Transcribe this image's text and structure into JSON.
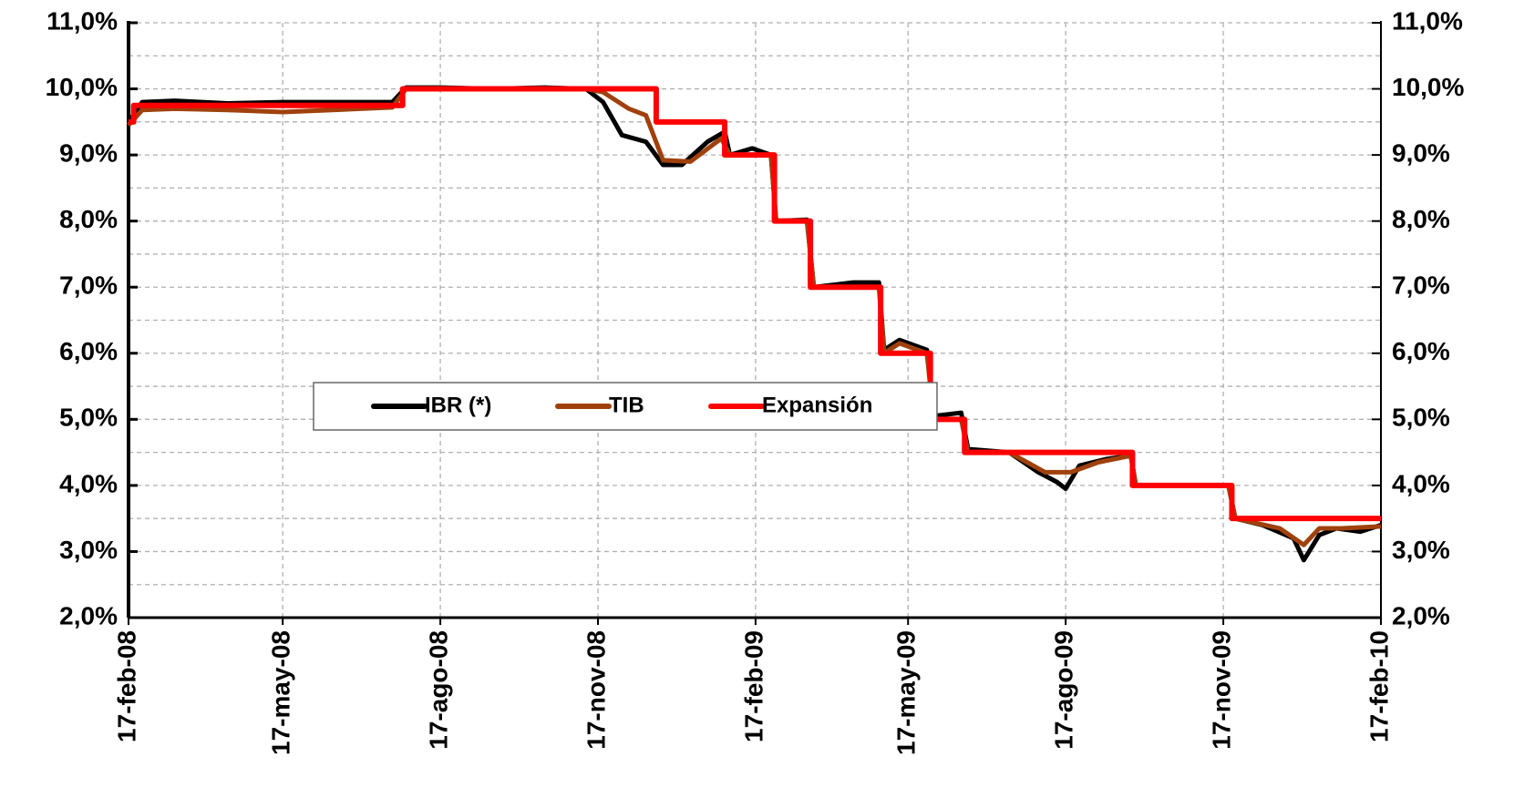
{
  "chart_data": {
    "type": "line",
    "xlim": [
      "2008-02-17",
      "2010-02-17"
    ],
    "xticks": [
      {
        "value": "2008-02-17",
        "label": "17-feb-08"
      },
      {
        "value": "2008-05-17",
        "label": "17-may-08"
      },
      {
        "value": "2008-08-17",
        "label": "17-ago-08"
      },
      {
        "value": "2008-11-17",
        "label": "17-nov-08"
      },
      {
        "value": "2009-02-17",
        "label": "17-feb-09"
      },
      {
        "value": "2009-05-17",
        "label": "17-may-09"
      },
      {
        "value": "2009-08-17",
        "label": "17-ago-09"
      },
      {
        "value": "2009-11-17",
        "label": "17-nov-09"
      },
      {
        "value": "2010-02-17",
        "label": "17-feb-10"
      }
    ],
    "ylim": [
      2,
      11
    ],
    "yticks": [
      {
        "value": 2,
        "label": "2,0%"
      },
      {
        "value": 3,
        "label": "3,0%"
      },
      {
        "value": 4,
        "label": "4,0%"
      },
      {
        "value": 5,
        "label": "5,0%"
      },
      {
        "value": 6,
        "label": "6,0%"
      },
      {
        "value": 7,
        "label": "7,0%"
      },
      {
        "value": 8,
        "label": "8,0%"
      },
      {
        "value": 9,
        "label": "9,0%"
      },
      {
        "value": 10,
        "label": "10,0%"
      },
      {
        "value": 11,
        "label": "11,0%"
      }
    ],
    "yminorticks": [
      2.5,
      3.5,
      4.5,
      5.5,
      6.5,
      7.5,
      8.5,
      9.5,
      10.5
    ],
    "y2lim": [
      2,
      11
    ],
    "y2ticks": [
      {
        "value": 2,
        "label": "2,0%"
      },
      {
        "value": 3,
        "label": "3,0%"
      },
      {
        "value": 4,
        "label": "4,0%"
      },
      {
        "value": 5,
        "label": "5,0%"
      },
      {
        "value": 6,
        "label": "6,0%"
      },
      {
        "value": 7,
        "label": "7,0%"
      },
      {
        "value": 8,
        "label": "8,0%"
      },
      {
        "value": 9,
        "label": "9,0%"
      },
      {
        "value": 10,
        "label": "10,0%"
      },
      {
        "value": 11,
        "label": "11,0%"
      }
    ],
    "grid": true,
    "legend": "center",
    "series": [
      {
        "name": "IBR (*)",
        "color": "#000000",
        "x": [
          "2008-02-17",
          "2008-02-25",
          "2008-03-15",
          "2008-04-15",
          "2008-05-17",
          "2008-06-15",
          "2008-07-20",
          "2008-07-28",
          "2008-08-17",
          "2008-09-17",
          "2008-10-17",
          "2008-11-10",
          "2008-11-20",
          "2008-12-01",
          "2008-12-15",
          "2008-12-25",
          "2009-01-05",
          "2009-01-20",
          "2009-01-30",
          "2009-02-02",
          "2009-02-15",
          "2009-02-26",
          "2009-03-01",
          "2009-03-19",
          "2009-03-23",
          "2009-04-15",
          "2009-04-30",
          "2009-05-03",
          "2009-05-12",
          "2009-05-28",
          "2009-06-01",
          "2009-06-17",
          "2009-06-21",
          "2009-07-15",
          "2009-08-01",
          "2009-08-12",
          "2009-08-17",
          "2009-08-25",
          "2009-09-10",
          "2009-09-24",
          "2009-09-27",
          "2009-10-17",
          "2009-11-20",
          "2009-11-24",
          "2009-12-10",
          "2009-12-28",
          "2010-01-03",
          "2010-01-12",
          "2010-01-22",
          "2010-02-05",
          "2010-02-17"
        ],
        "values": [
          9.5,
          9.8,
          9.82,
          9.78,
          9.8,
          9.8,
          9.8,
          10.02,
          10.02,
          10.0,
          10.02,
          10.0,
          9.8,
          9.3,
          9.2,
          8.85,
          8.85,
          9.2,
          9.35,
          9.0,
          9.1,
          9.0,
          8.0,
          8.02,
          7.0,
          7.07,
          7.07,
          6.05,
          6.2,
          6.05,
          5.05,
          5.1,
          4.55,
          4.5,
          4.2,
          4.05,
          3.95,
          4.3,
          4.4,
          4.45,
          4.0,
          4.0,
          4.0,
          3.5,
          3.4,
          3.2,
          2.87,
          3.25,
          3.35,
          3.3,
          3.4
        ]
      },
      {
        "name": "TIB",
        "color": "#a0410d",
        "x": [
          "2008-02-17",
          "2008-02-25",
          "2008-03-15",
          "2008-04-15",
          "2008-05-17",
          "2008-06-15",
          "2008-07-20",
          "2008-07-28",
          "2008-08-17",
          "2008-09-17",
          "2008-10-17",
          "2008-11-10",
          "2008-11-20",
          "2008-12-05",
          "2008-12-15",
          "2008-12-25",
          "2009-01-10",
          "2009-01-28",
          "2009-02-02",
          "2009-02-26",
          "2009-03-01",
          "2009-03-19",
          "2009-03-23",
          "2009-04-30",
          "2009-05-03",
          "2009-05-12",
          "2009-05-28",
          "2009-06-01",
          "2009-06-17",
          "2009-06-21",
          "2009-07-15",
          "2009-08-05",
          "2009-08-20",
          "2009-09-05",
          "2009-09-24",
          "2009-09-27",
          "2009-11-20",
          "2009-11-24",
          "2009-12-20",
          "2010-01-03",
          "2010-01-12",
          "2010-01-25",
          "2010-02-17"
        ],
        "values": [
          9.45,
          9.68,
          9.7,
          9.68,
          9.65,
          9.68,
          9.72,
          10.0,
          10.0,
          10.0,
          10.0,
          10.0,
          9.95,
          9.7,
          9.6,
          8.92,
          8.9,
          9.25,
          9.0,
          9.0,
          8.0,
          8.0,
          7.0,
          7.0,
          6.0,
          6.15,
          6.0,
          5.0,
          5.0,
          4.5,
          4.5,
          4.2,
          4.2,
          4.35,
          4.45,
          4.0,
          4.0,
          3.5,
          3.35,
          3.1,
          3.35,
          3.35,
          3.38
        ]
      },
      {
        "name": "Expansión",
        "color": "#ff0000",
        "x": [
          "2008-02-17",
          "2008-02-20",
          "2008-02-20",
          "2008-07-26",
          "2008-07-26",
          "2008-12-21",
          "2008-12-21",
          "2009-01-30",
          "2009-01-30",
          "2009-02-28",
          "2009-02-28",
          "2009-03-21",
          "2009-03-21",
          "2009-05-01",
          "2009-05-01",
          "2009-05-30",
          "2009-05-30",
          "2009-06-19",
          "2009-06-19",
          "2009-09-25",
          "2009-09-25",
          "2009-11-22",
          "2009-11-22",
          "2010-02-17"
        ],
        "values": [
          9.5,
          9.5,
          9.75,
          9.75,
          10,
          10,
          9.5,
          9.5,
          9,
          9,
          8,
          8,
          7,
          7,
          6,
          6,
          5,
          5,
          4.5,
          4.5,
          4,
          4,
          3.5,
          3.5
        ]
      }
    ]
  }
}
